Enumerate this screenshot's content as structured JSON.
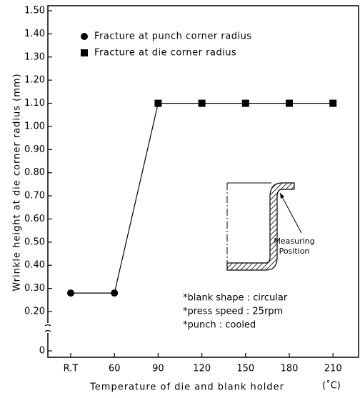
{
  "chart_data": {
    "type": "line",
    "y_label": "Wrinkle height at die corner radius (mm)",
    "x_label": "Temperature of die and blank holder",
    "x_unit": "(˚C)",
    "categories": [
      "R.T",
      "60",
      "90",
      "120",
      "150",
      "180",
      "210"
    ],
    "series": [
      {
        "name": "Fracture at punch corner radius",
        "marker": "circle",
        "color": "#000000",
        "values": [
          0.28,
          0.28,
          null,
          null,
          null,
          null,
          null
        ]
      },
      {
        "name": "Fracture at die corner radius",
        "marker": "square",
        "color": "#000000",
        "values": [
          null,
          null,
          1.1,
          1.1,
          1.1,
          1.1,
          1.1
        ]
      }
    ],
    "ylim": [
      0.2,
      1.5
    ],
    "yticks": [
      0,
      {
        "value": 0.2,
        "label": "0.20"
      },
      {
        "value": 0.3,
        "label": "0.30"
      },
      {
        "value": 0.4,
        "label": "0.40"
      },
      {
        "value": 0.5,
        "label": "0.50"
      },
      {
        "value": 0.6,
        "label": "0.60"
      },
      {
        "value": 0.7,
        "label": "0.70"
      },
      {
        "value": 0.8,
        "label": "0.80"
      },
      {
        "value": 0.9,
        "label": "0.90"
      },
      {
        "value": 1.0,
        "label": "1.00"
      },
      {
        "value": 1.1,
        "label": "1.10"
      },
      {
        "value": 1.2,
        "label": "1.20"
      },
      {
        "value": 1.3,
        "label": "1.30"
      },
      {
        "value": 1.4,
        "label": "1.40"
      },
      {
        "value": 1.5,
        "label": "1.50"
      }
    ],
    "y_break": true,
    "annotations": [
      "*blank shape : circular",
      "*press speed : 25rpm",
      "*punch : cooled"
    ],
    "inset_label": [
      "Measuring",
      "Position"
    ]
  }
}
